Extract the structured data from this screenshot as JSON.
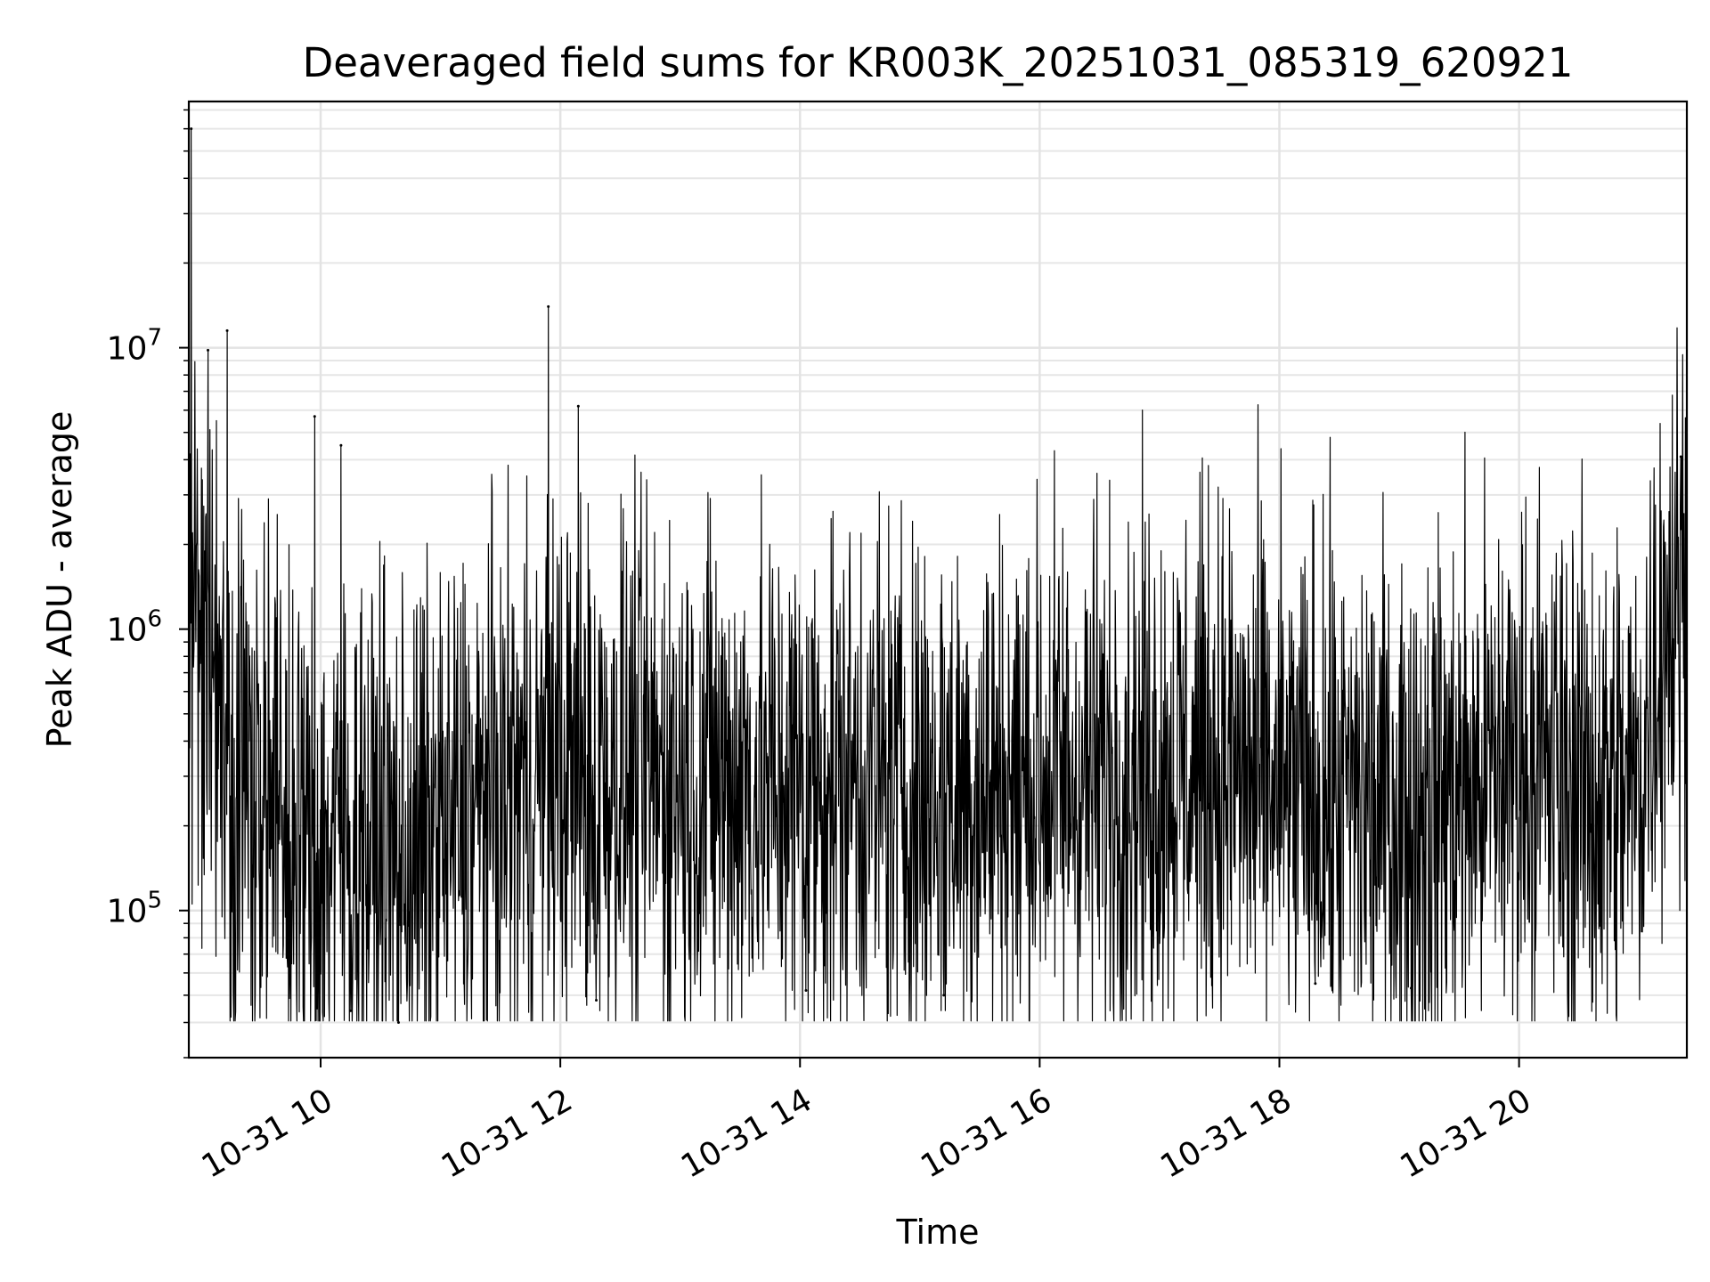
{
  "chart_data": {
    "type": "line",
    "title": "Deaveraged field sums for KR003K_20251031_085319_620921",
    "xlabel": "Time",
    "ylabel": "Peak ADU - average",
    "yscale": "log",
    "grid": true,
    "grid_minor": true,
    "legend": "none",
    "xlim_hours": [
      8.9,
      21.4
    ],
    "ylim": [
      30000,
      75000000
    ],
    "x_ticks": [
      {
        "value": 10,
        "label": "10-31 10"
      },
      {
        "value": 12,
        "label": "10-31 12"
      },
      {
        "value": 14,
        "label": "10-31 14"
      },
      {
        "value": 16,
        "label": "10-31 16"
      },
      {
        "value": 18,
        "label": "10-31 18"
      },
      {
        "value": 20,
        "label": "10-31 20"
      }
    ],
    "y_ticks": [
      {
        "value": 100000,
        "base": "10",
        "exp": "5"
      },
      {
        "value": 1000000,
        "base": "10",
        "exp": "6"
      },
      {
        "value": 10000000,
        "base": "10",
        "exp": "7"
      }
    ],
    "series": [
      {
        "name": "Peak ADU - average",
        "color": "#000000",
        "x_hours": [
          8.9,
          9.0,
          9.1,
          9.2,
          9.3,
          9.4,
          9.5,
          9.6,
          9.7,
          9.8,
          9.9,
          10.0,
          10.2,
          10.4,
          10.6,
          10.8,
          11.0,
          11.2,
          11.4,
          11.6,
          11.8,
          12.0,
          12.2,
          12.5,
          13.0,
          13.5,
          14.0,
          14.5,
          15.0,
          15.5,
          16.0,
          16.5,
          17.0,
          17.5,
          18.0,
          18.5,
          19.0,
          19.5,
          20.0,
          20.5,
          21.0,
          21.2,
          21.4
        ],
        "baseline_values": [
          1000000,
          1100000,
          1000000,
          400000,
          330000,
          300000,
          320000,
          230000,
          180000,
          170000,
          160000,
          160000,
          180000,
          170000,
          160000,
          160000,
          190000,
          210000,
          230000,
          260000,
          300000,
          310000,
          300000,
          300000,
          300000,
          280000,
          280000,
          300000,
          260000,
          270000,
          290000,
          300000,
          320000,
          330000,
          260000,
          240000,
          230000,
          260000,
          360000,
          270000,
          280000,
          1150000,
          1200000
        ],
        "spikes": [
          {
            "x_hours": 8.92,
            "value": 60000000
          },
          {
            "x_hours": 9.06,
            "value": 9800000
          },
          {
            "x_hours": 9.22,
            "value": 11500000
          },
          {
            "x_hours": 9.95,
            "value": 5700000
          },
          {
            "x_hours": 10.17,
            "value": 4500000
          },
          {
            "x_hours": 11.9,
            "value": 14000000
          },
          {
            "x_hours": 12.15,
            "value": 6200000
          },
          {
            "x_hours": 21.35,
            "value": 4100000
          }
        ],
        "dips": [
          {
            "x_hours": 9.97,
            "value": 45000
          },
          {
            "x_hours": 10.25,
            "value": 44000
          },
          {
            "x_hours": 10.65,
            "value": 40000
          },
          {
            "x_hours": 12.3,
            "value": 48000
          },
          {
            "x_hours": 14.05,
            "value": 52000
          },
          {
            "x_hours": 15.2,
            "value": 50000
          },
          {
            "x_hours": 18.3,
            "value": 55000
          },
          {
            "x_hours": 19.1,
            "value": 53000
          }
        ]
      }
    ]
  }
}
